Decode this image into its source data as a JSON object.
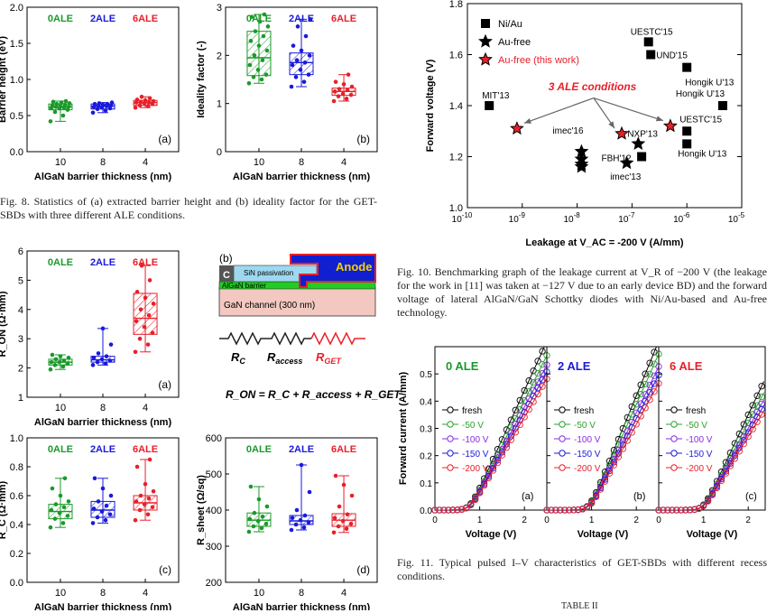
{
  "captions": {
    "fig8": "Fig. 8.   Statistics of (a) extracted barrier height and (b) ideality factor for the GET-SBDs with three different ALE conditions.",
    "fig10": "Fig. 10.   Benchmarking graph of the leakage current at V_R of −200 V (the leakage for the work in [11] was taken at −127 V due to an early device BD) and the forward voltage of lateral AlGaN/GaN Schottky diodes with Ni/Au-based and Au-free technology.",
    "fig11": "Fig. 11.   Typical pulsed I–V characteristics of GET-SBDs with different recess conditions.",
    "table_header": "TABLE II"
  },
  "colors": {
    "ale0": "#1a9a2a",
    "ale2": "#1a1adb",
    "ale6": "#e8202a"
  },
  "schematic": {
    "panel_label": "(b)",
    "anode": "Anode",
    "c_label": "C",
    "sin": "SiN passivation",
    "algan": "AlGaN barrier",
    "gan": "GaN channel (300 nm)",
    "r_labels": [
      "R",
      "R",
      "R"
    ],
    "r_subs": [
      "C",
      "access",
      "GET"
    ],
    "equation": "R_ON = R_C + R_access + R_GET"
  },
  "chart_data": [
    {
      "id": "barrier-height",
      "type": "box",
      "panel": "(a)",
      "xlabel": "AlGaN barrier thickness (nm)",
      "ylabel": "Barrier height (eV)",
      "ylim": [
        0.0,
        2.0
      ],
      "yticks": [
        "0.0",
        "0.5",
        "1.0",
        "1.5",
        "2.0"
      ],
      "categories": [
        "10",
        "8",
        "4"
      ],
      "series_labels": [
        "0ALE",
        "2ALE",
        "6ALE"
      ],
      "boxes": [
        {
          "median": 0.62,
          "q1": 0.58,
          "q3": 0.66,
          "min": 0.42,
          "max": 0.7,
          "points": [
            0.42,
            0.5,
            0.55,
            0.58,
            0.6,
            0.6,
            0.61,
            0.62,
            0.62,
            0.63,
            0.64,
            0.65,
            0.66,
            0.67,
            0.68,
            0.69,
            0.7
          ]
        },
        {
          "median": 0.63,
          "q1": 0.59,
          "q3": 0.66,
          "min": 0.54,
          "max": 0.68,
          "points": [
            0.54,
            0.57,
            0.59,
            0.6,
            0.61,
            0.62,
            0.63,
            0.63,
            0.64,
            0.65,
            0.66,
            0.66,
            0.67,
            0.68
          ]
        },
        {
          "median": 0.68,
          "q1": 0.64,
          "q3": 0.71,
          "min": 0.61,
          "max": 0.76,
          "points": [
            0.61,
            0.63,
            0.64,
            0.66,
            0.67,
            0.68,
            0.68,
            0.69,
            0.7,
            0.71,
            0.72,
            0.74,
            0.76
          ]
        }
      ]
    },
    {
      "id": "ideality-factor",
      "type": "box",
      "panel": "(b)",
      "xlabel": "AlGaN barrier thickness (nm)",
      "ylabel": "Ideality factor (-)",
      "ylim": [
        0,
        3
      ],
      "yticks": [
        "0",
        "1",
        "2",
        "3"
      ],
      "categories": [
        "10",
        "8",
        "4"
      ],
      "series_labels": [
        "0ALE",
        "2ALE",
        "6ALE"
      ],
      "boxes": [
        {
          "median": 1.95,
          "q1": 1.58,
          "q3": 2.5,
          "min": 1.42,
          "max": 2.85,
          "points": [
            1.42,
            1.5,
            1.55,
            1.6,
            1.7,
            1.8,
            1.9,
            2.0,
            2.1,
            2.2,
            2.3,
            2.4,
            2.5,
            2.6,
            2.7,
            2.8,
            2.85
          ]
        },
        {
          "median": 1.85,
          "q1": 1.6,
          "q3": 2.05,
          "min": 1.35,
          "max": 2.75,
          "points": [
            1.35,
            1.45,
            1.55,
            1.6,
            1.7,
            1.8,
            1.85,
            1.9,
            2.0,
            2.1,
            2.2,
            2.4,
            2.6,
            2.75
          ]
        },
        {
          "median": 1.25,
          "q1": 1.17,
          "q3": 1.32,
          "min": 1.05,
          "max": 1.6,
          "points": [
            1.05,
            1.1,
            1.15,
            1.18,
            1.2,
            1.25,
            1.28,
            1.3,
            1.35,
            1.4,
            1.45,
            1.6
          ]
        }
      ]
    },
    {
      "id": "ron",
      "type": "box",
      "panel": "(a)",
      "xlabel": "AlGaN barrier thickness (nm)",
      "ylabel": "R_ON (Ω·mm)",
      "ylim": [
        1,
        6
      ],
      "yticks": [
        "1",
        "2",
        "3",
        "4",
        "5",
        "6"
      ],
      "categories": [
        "10",
        "8",
        "4"
      ],
      "series_labels": [
        "0ALE",
        "2ALE",
        "6ALE"
      ],
      "boxes": [
        {
          "median": 2.2,
          "q1": 2.1,
          "q3": 2.3,
          "min": 1.95,
          "max": 2.45,
          "points": [
            1.95,
            2.05,
            2.1,
            2.15,
            2.2,
            2.2,
            2.25,
            2.3,
            2.35,
            2.4,
            2.45
          ]
        },
        {
          "median": 2.28,
          "q1": 2.2,
          "q3": 2.4,
          "min": 2.1,
          "max": 3.35,
          "points": [
            2.1,
            2.15,
            2.2,
            2.25,
            2.3,
            2.35,
            2.4,
            2.5,
            2.8,
            3.35
          ]
        },
        {
          "median": 3.7,
          "q1": 3.15,
          "q3": 4.55,
          "min": 2.55,
          "max": 5.5,
          "points": [
            2.55,
            2.8,
            3.0,
            3.2,
            3.4,
            3.6,
            3.8,
            4.0,
            4.2,
            4.4,
            4.6,
            5.0,
            5.5
          ]
        }
      ]
    },
    {
      "id": "rc",
      "type": "box",
      "panel": "(c)",
      "xlabel": "AlGaN barrier thickness (nm)",
      "ylabel": "R_C (Ω·mm)",
      "ylim": [
        0.0,
        1.0
      ],
      "yticks": [
        "0.0",
        "0.2",
        "0.4",
        "0.6",
        "0.8",
        "1.0"
      ],
      "categories": [
        "10",
        "8",
        "4"
      ],
      "series_labels": [
        "0ALE",
        "2ALE",
        "6ALE"
      ],
      "boxes": [
        {
          "median": 0.49,
          "q1": 0.44,
          "q3": 0.54,
          "min": 0.38,
          "max": 0.72,
          "points": [
            0.38,
            0.41,
            0.44,
            0.46,
            0.48,
            0.5,
            0.52,
            0.54,
            0.56,
            0.6,
            0.65,
            0.72
          ]
        },
        {
          "median": 0.5,
          "q1": 0.45,
          "q3": 0.56,
          "min": 0.41,
          "max": 0.72,
          "points": [
            0.41,
            0.43,
            0.45,
            0.47,
            0.49,
            0.51,
            0.53,
            0.56,
            0.6,
            0.65,
            0.72
          ]
        },
        {
          "median": 0.55,
          "q1": 0.5,
          "q3": 0.6,
          "min": 0.43,
          "max": 0.85,
          "points": [
            0.43,
            0.47,
            0.5,
            0.52,
            0.54,
            0.56,
            0.58,
            0.6,
            0.63,
            0.68,
            0.8,
            0.85
          ]
        }
      ]
    },
    {
      "id": "rsheet",
      "type": "box",
      "panel": "(d)",
      "xlabel": "AlGaN barrier thickness (nm)",
      "ylabel": "R_sheet (Ω/sq)",
      "ylim": [
        200,
        600
      ],
      "yticks": [
        "200",
        "300",
        "400",
        "500",
        "600"
      ],
      "categories": [
        "10",
        "8",
        "4"
      ],
      "series_labels": [
        "0ALE",
        "2ALE",
        "6ALE"
      ],
      "boxes": [
        {
          "median": 372,
          "q1": 355,
          "q3": 392,
          "min": 340,
          "max": 465,
          "points": [
            340,
            350,
            355,
            362,
            370,
            375,
            382,
            392,
            410,
            430,
            465
          ]
        },
        {
          "median": 370,
          "q1": 360,
          "q3": 385,
          "min": 345,
          "max": 525,
          "points": [
            345,
            352,
            360,
            366,
            372,
            378,
            385,
            400,
            450,
            525
          ]
        },
        {
          "median": 372,
          "q1": 355,
          "q3": 390,
          "min": 338,
          "max": 495,
          "points": [
            338,
            348,
            355,
            362,
            370,
            378,
            388,
            410,
            440,
            470,
            495
          ]
        }
      ]
    },
    {
      "id": "benchmark",
      "type": "scatter",
      "xscale": "log",
      "xlabel": "Leakage at  V_AC = -200 V (A/mm)",
      "ylabel": "Forward voltage (V)",
      "xlim": [
        1e-10,
        1e-05
      ],
      "ylim": [
        1.0,
        1.8
      ],
      "xticks": [
        "10^-10",
        "10^-9",
        "10^-8",
        "10^-7",
        "10^-6",
        "10^-5"
      ],
      "yticks": [
        "1.0",
        "1.2",
        "1.4",
        "1.6",
        "1.8"
      ],
      "legend": [
        "Ni/Au",
        "Au-free",
        "Au-free (this work)"
      ],
      "annotation": "3 ALE conditions",
      "points": [
        {
          "label": "MIT'13",
          "x": 2.5e-10,
          "y": 1.4,
          "marker": "square"
        },
        {
          "label": "UESTC'15",
          "x": 2e-07,
          "y": 1.65,
          "marker": "square"
        },
        {
          "label": "UND'15",
          "x": 2.2e-07,
          "y": 1.6,
          "marker": "square"
        },
        {
          "label": "Hongik U'13",
          "x": 1e-06,
          "y": 1.55,
          "marker": "square"
        },
        {
          "label": "Hongik U'13",
          "x": 4.5e-06,
          "y": 1.4,
          "marker": "square"
        },
        {
          "label": "UESTC'15",
          "x": 1e-06,
          "y": 1.3,
          "marker": "square"
        },
        {
          "label": "Hongik U'13",
          "x": 1e-06,
          "y": 1.25,
          "marker": "square"
        },
        {
          "label": "",
          "x": 1.5e-07,
          "y": 1.2,
          "marker": "square"
        },
        {
          "label": "imec'16",
          "x": 1.2e-08,
          "y": 1.22,
          "marker": "star"
        },
        {
          "label": "",
          "x": 1.2e-08,
          "y": 1.19,
          "marker": "star"
        },
        {
          "label": "",
          "x": 1.2e-08,
          "y": 1.17,
          "marker": "star"
        },
        {
          "label": "",
          "x": 1.2e-08,
          "y": 1.16,
          "marker": "star"
        },
        {
          "label": "NXP'13",
          "x": 1.3e-07,
          "y": 1.25,
          "marker": "star"
        },
        {
          "label": "FBH'12",
          "x": 8e-08,
          "y": 1.175,
          "marker": "star"
        },
        {
          "label": "",
          "x": 8e-10,
          "y": 1.31,
          "marker": "red-star"
        },
        {
          "label": "",
          "x": 6.5e-08,
          "y": 1.29,
          "marker": "red-star"
        },
        {
          "label": "",
          "x": 5e-07,
          "y": 1.32,
          "marker": "red-star"
        }
      ],
      "extra_labels": [
        "imec'13"
      ]
    },
    {
      "id": "pulsed-iv",
      "type": "line",
      "panels": [
        "0 ALE",
        "2 ALE",
        "6 ALE"
      ],
      "panel_tags": [
        "(a)",
        "(b)",
        "(c)"
      ],
      "xlabel": "Voltage (V)",
      "ylabel": "Forward current (A/mm)",
      "xlim": [
        0,
        2.5
      ],
      "ylim": [
        0,
        0.6
      ],
      "xticks": [
        "0",
        "1",
        "2"
      ],
      "yticks": [
        "0.0",
        "0.1",
        "0.2",
        "0.3",
        "0.4",
        "0.5"
      ],
      "legend": [
        "fresh",
        "-50 V",
        "-100 V",
        "-150 V",
        "-200 V"
      ],
      "series_colors": [
        "#000000",
        "#2aa02a",
        "#8a2be2",
        "#1a1adb",
        "#e8202a"
      ],
      "turn_on": [
        0.78,
        0.95,
        1.0
      ],
      "slopes": [
        [
          0.36,
          0.33,
          0.31,
          0.295,
          0.28
        ],
        [
          0.4,
          0.37,
          0.34,
          0.32,
          0.3
        ],
        [
          0.35,
          0.32,
          0.3,
          0.285,
          0.27
        ]
      ]
    }
  ]
}
